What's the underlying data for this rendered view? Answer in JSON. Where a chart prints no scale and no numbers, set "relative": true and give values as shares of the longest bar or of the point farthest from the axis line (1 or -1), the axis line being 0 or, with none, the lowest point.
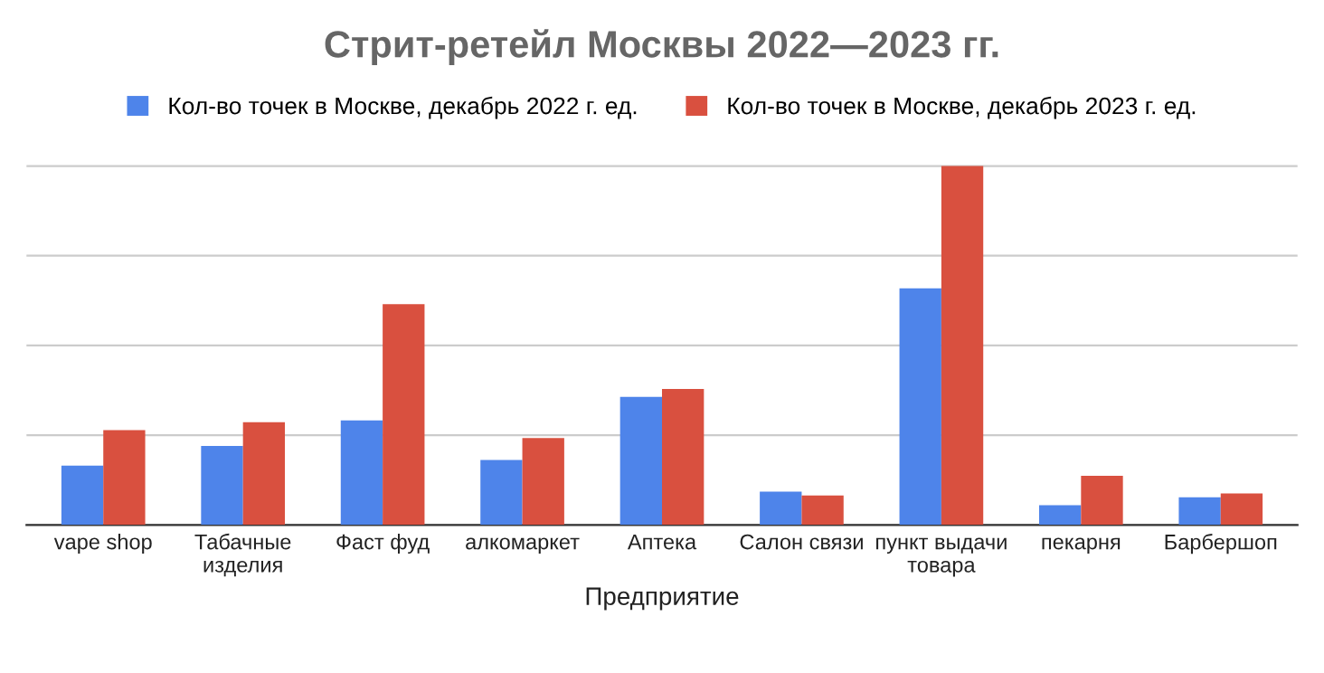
{
  "chart_data": {
    "type": "bar",
    "title": "Стрит-ретейл Москвы 2022—2023 гг.",
    "xlabel": "Предприятие",
    "relative": true,
    "grid": "y",
    "legend": "top",
    "categories": [
      "vape shop",
      "Табачные\nизделия",
      "Фаст фуд",
      "алкомаркет",
      "Аптека",
      "Салон связи",
      "пункт выдачи\nтовара",
      "пекарня",
      "Барбершоп"
    ],
    "series": [
      {
        "name": "Кол-во точек в Москве, декабрь 2022 г. ед.",
        "color": "#4e84ea",
        "values": [
          0.165,
          0.22,
          0.291,
          0.181,
          0.357,
          0.093,
          0.659,
          0.055,
          0.077
        ]
      },
      {
        "name": "Кол-во точек в Москве, декабрь 2023 г. ед.",
        "color": "#d9503f",
        "values": [
          0.264,
          0.286,
          0.615,
          0.242,
          0.379,
          0.082,
          1,
          0.137,
          0.088
        ]
      }
    ]
  }
}
